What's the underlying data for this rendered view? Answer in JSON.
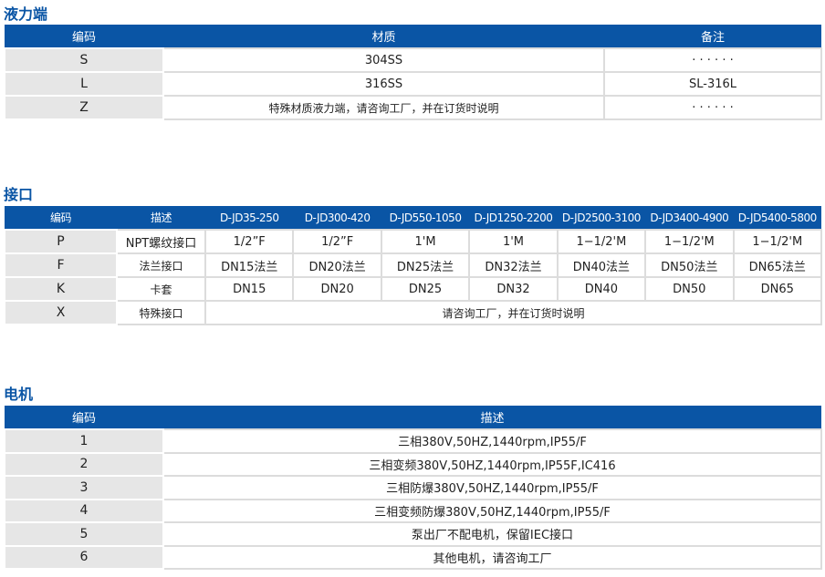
{
  "liquid_end": {
    "title": "液力端",
    "headers": [
      "编码",
      "材质",
      "备注"
    ],
    "rows": [
      [
        "S",
        "304SS",
        "· · · · · ·"
      ],
      [
        "L",
        "316SS",
        "SL-316L"
      ],
      [
        "Z",
        "特殊材质液力端，请咨询工厂，并在订货时说明",
        "· · · · · ·"
      ]
    ]
  },
  "connection": {
    "title": "接口",
    "headers": [
      "编码",
      "描述",
      "D-JD35-250",
      "D-JD300-420",
      "D-JD550-1050",
      "D-JD1250-2200",
      "D-JD2500-3100",
      "D-JD3400-4900",
      "D-JD5400-5800"
    ],
    "rows": [
      [
        "P",
        "NPT螺纹接口",
        "1/2”F",
        "1/2”F",
        "1'M",
        "1'M",
        "1−1/2'M",
        "1−1/2'M",
        "1−1/2'M"
      ],
      [
        "F",
        "法兰接口",
        "DN15法兰",
        "DN20法兰",
        "DN25法兰",
        "DN32法兰",
        "DN40法兰",
        "DN50法兰",
        "DN65法兰"
      ],
      [
        "K",
        "卡套",
        "DN15",
        "DN20",
        "DN25",
        "DN32",
        "DN40",
        "DN50",
        "DN65"
      ]
    ],
    "special": {
      "code": "X",
      "desc": "特殊接口",
      "note": "请咨询工厂，并在订货时说明"
    }
  },
  "motor": {
    "title": "电机",
    "headers": [
      "编码",
      "描述"
    ],
    "rows": [
      [
        "1",
        "三相380V,50HZ,1440rpm,IP55/F"
      ],
      [
        "2",
        "三相变频380V,50HZ,1440rpm,IP55F,IC416"
      ],
      [
        "3",
        "三相防爆380V,50HZ,1440rpm,IP55/F"
      ],
      [
        "4",
        "三相变频防爆380V,50HZ,1440rpm,IP55/F"
      ],
      [
        "5",
        "泵出厂不配电机，保留IEC接口"
      ],
      [
        "6",
        "其他电机，请咨询工厂"
      ]
    ]
  }
}
